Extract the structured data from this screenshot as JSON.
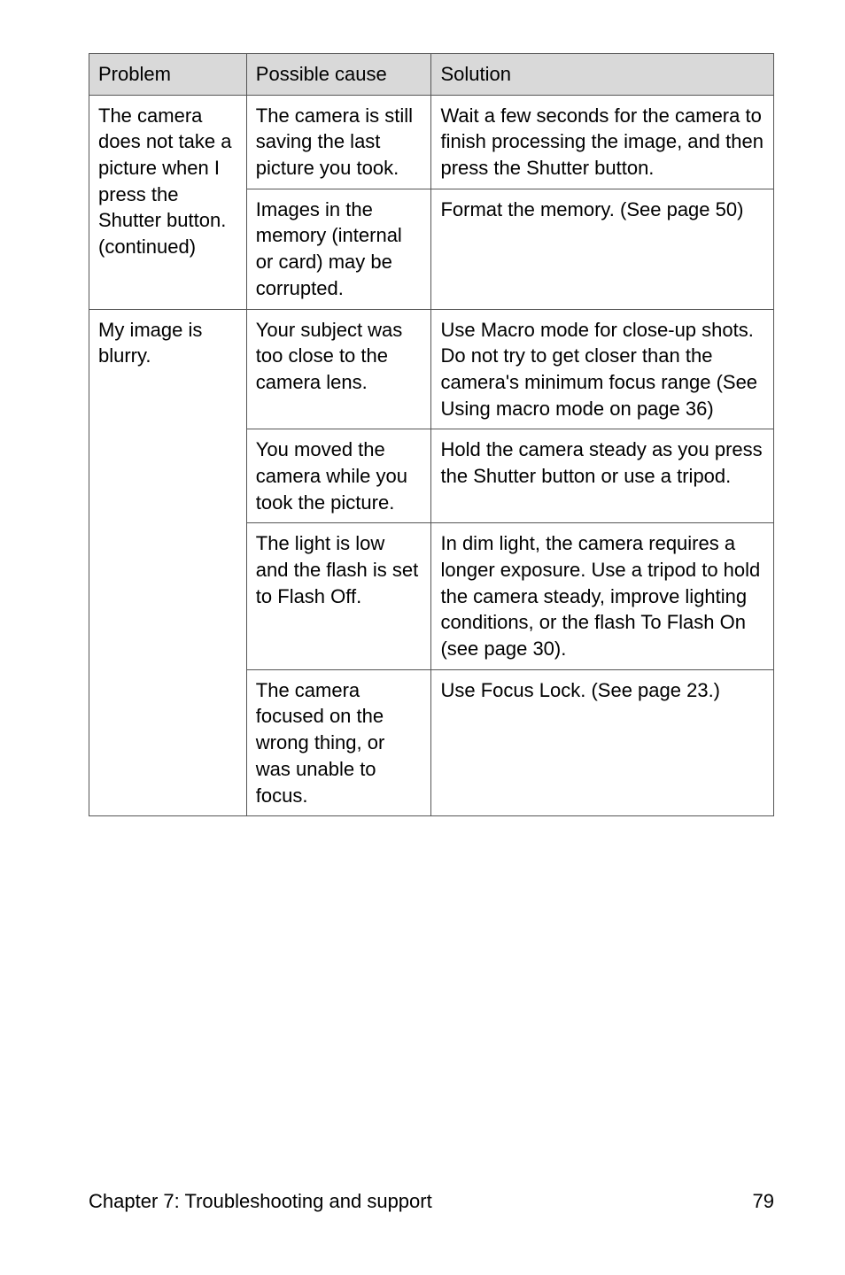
{
  "table": {
    "headers": {
      "problem": "Problem",
      "cause": "Possible cause",
      "solution": "Solution"
    },
    "header_bg": "#d9d9d9",
    "border_color": "#555555",
    "rows": [
      {
        "problem": {
          "segments": [
            {
              "t": "The camera does not take a picture when I press the "
            },
            {
              "t": "Shutter",
              "bold": true
            },
            {
              "t": " button. (continued)"
            }
          ],
          "rowspan": 2
        },
        "cause": {
          "segments": [
            {
              "t": "The camera is still saving the last picture you took."
            }
          ]
        },
        "solution": {
          "segments": [
            {
              "t": "Wait a few seconds for the camera to finish processing the image, and then press the "
            },
            {
              "t": "Shutter",
              "bold": true
            },
            {
              "t": " button."
            }
          ]
        }
      },
      {
        "cause": {
          "segments": [
            {
              "t": "Images in the memory (internal or card) may be corrupted."
            }
          ]
        },
        "solution": {
          "segments": [
            {
              "t": "Format the memory. (See page 50)"
            }
          ]
        }
      },
      {
        "problem": {
          "segments": [
            {
              "t": "My image is blurry."
            }
          ],
          "rowspan": 4
        },
        "cause": {
          "segments": [
            {
              "t": "Your subject was too close to the camera lens."
            }
          ]
        },
        "solution": {
          "segments": [
            {
              "t": "Use Macro mode for close-up shots. Do not try to get closer than the camera's minimum focus range (See "
            },
            {
              "t": "Using macro mode",
              "bold": true
            },
            {
              "t": " on page 36)"
            }
          ]
        }
      },
      {
        "cause": {
          "segments": [
            {
              "t": "You moved the camera while you took the picture."
            }
          ]
        },
        "solution": {
          "segments": [
            {
              "t": "Hold the camera steady as you press the "
            },
            {
              "t": "Shutter",
              "bold": true
            },
            {
              "t": " button or use a tripod."
            }
          ]
        }
      },
      {
        "cause": {
          "segments": [
            {
              "t": "The light is low and the flash is set to "
            },
            {
              "t": "Flash Off",
              "bold": true
            },
            {
              "t": "."
            }
          ]
        },
        "solution": {
          "segments": [
            {
              "t": "In dim light, the camera requires a longer exposure. Use a tripod to hold the camera steady, improve lighting conditions, or the flash To "
            },
            {
              "t": "Flash On",
              "bold": true
            },
            {
              "t": " (see page 30)."
            }
          ]
        }
      },
      {
        "cause": {
          "segments": [
            {
              "t": "The camera focused on the wrong thing, or was unable to focus."
            }
          ]
        },
        "solution": {
          "segments": [
            {
              "t": "Use "
            },
            {
              "t": "Focus Lock",
              "bold": true
            },
            {
              "t": ". (See page 23.)"
            }
          ]
        }
      }
    ]
  },
  "footer": {
    "chapter": "Chapter 7: Troubleshooting and support",
    "page_number": "79"
  },
  "style": {
    "font_family": "Futura / Century Gothic",
    "body_font_size_pt": 16,
    "background_color": "#ffffff",
    "text_color": "#000000"
  }
}
